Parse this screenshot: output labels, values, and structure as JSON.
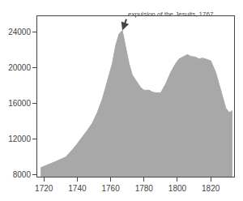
{
  "chart_data": {
    "type": "area",
    "x": [
      1718,
      1722,
      1727,
      1733,
      1737,
      1740,
      1743,
      1746,
      1749,
      1752,
      1755,
      1758,
      1761,
      1763,
      1765,
      1767,
      1769,
      1771,
      1773,
      1775,
      1778,
      1780,
      1783,
      1785,
      1787,
      1790,
      1793,
      1796,
      1799,
      1801,
      1803,
      1806,
      1808,
      1811,
      1813,
      1815,
      1817,
      1820,
      1823,
      1826,
      1829,
      1831,
      1833
    ],
    "values": [
      8800,
      9100,
      9500,
      10000,
      10800,
      11500,
      12200,
      13000,
      13800,
      15000,
      16500,
      18500,
      20500,
      22500,
      23800,
      24200,
      22500,
      20500,
      19200,
      18600,
      17800,
      17500,
      17500,
      17300,
      17200,
      17200,
      18200,
      19500,
      20500,
      21000,
      21200,
      21500,
      21300,
      21200,
      21000,
      21100,
      21000,
      20800,
      19500,
      17500,
      15500,
      15000,
      15200
    ],
    "color": "#a8a8a8",
    "annotations": [
      {
        "text": "expulsion of the Jesuits, 1767",
        "x": 1767,
        "y": 24200
      }
    ],
    "xlim": [
      1716,
      1834
    ],
    "ylim": [
      7800,
      25800
    ],
    "xticks": [
      1720,
      1740,
      1760,
      1780,
      1800,
      1820
    ],
    "yticks": [
      8000,
      12000,
      16000,
      20000,
      24000
    ],
    "grid": false
  }
}
